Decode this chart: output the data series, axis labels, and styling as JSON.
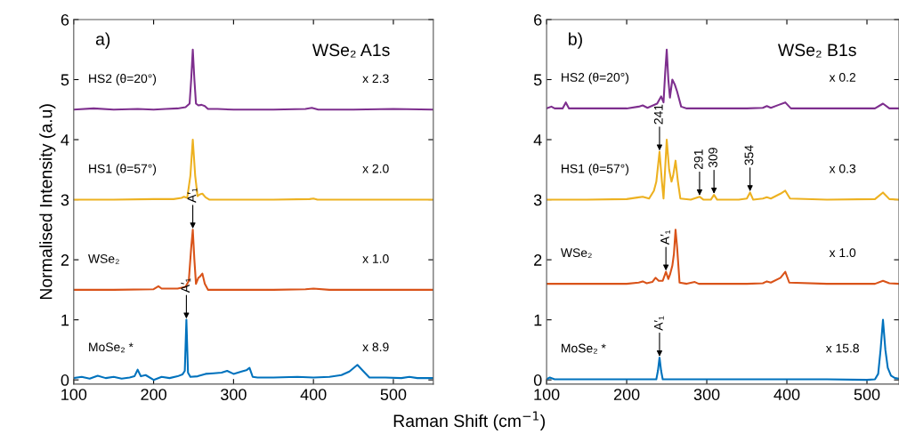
{
  "chart_data": [
    {
      "type": "line",
      "title": "WSe₂ A1s",
      "xlabel": "Raman Shift (cm$^{−1}$)",
      "ylabel": "Normalised Intensity (a.u)",
      "xlim": [
        100,
        550
      ],
      "ylim": [
        -0.07,
        6
      ],
      "xticks": [
        100,
        200,
        300,
        400,
        500
      ],
      "yticks": [
        0,
        1,
        2,
        3,
        4,
        5,
        6
      ],
      "grid": false,
      "legend": false,
      "annotations": [
        "a)",
        "x 2.3",
        "x 2.0",
        "x 1.0",
        "x 8.9",
        {
          "text": "A′₁",
          "x": 249,
          "y": 2.5
        },
        {
          "text": "A′₁",
          "x": 241,
          "y": 1.0
        }
      ],
      "series": [
        {
          "name": "HS2 (θ=20°)",
          "color": "#7e2f8e",
          "x": [
            100,
            125,
            150,
            180,
            200,
            215,
            230,
            240,
            245,
            247,
            249,
            251,
            253,
            256,
            260,
            264,
            268,
            280,
            300,
            350,
            390,
            398,
            406,
            450,
            500,
            550
          ],
          "values": [
            4.5,
            4.52,
            4.5,
            4.51,
            4.5,
            4.51,
            4.52,
            4.54,
            4.6,
            5.0,
            5.5,
            5.0,
            4.6,
            4.57,
            4.58,
            4.56,
            4.51,
            4.51,
            4.5,
            4.5,
            4.51,
            4.53,
            4.5,
            4.5,
            4.51,
            4.5
          ]
        },
        {
          "name": "HS1 (θ=57°)",
          "color": "#edb120",
          "x": [
            100,
            150,
            200,
            225,
            235,
            238,
            242,
            246,
            249,
            252,
            255,
            258,
            261,
            265,
            270,
            300,
            350,
            395,
            400,
            405,
            450,
            500,
            550
          ],
          "values": [
            3.0,
            3.0,
            3.01,
            3.01,
            3.03,
            3.05,
            3.03,
            3.4,
            4.0,
            3.4,
            3.06,
            3.09,
            3.1,
            3.04,
            3.0,
            3.0,
            3.0,
            3.01,
            3.02,
            3.0,
            3.0,
            3.0,
            3.0
          ]
        },
        {
          "name": "WSe₂",
          "color": "#d95319",
          "x": [
            100,
            150,
            200,
            206,
            210,
            230,
            240,
            244,
            247,
            249,
            251,
            253,
            256,
            258,
            261,
            264,
            268,
            300,
            350,
            390,
            400,
            420,
            450,
            500,
            550
          ],
          "values": [
            1.5,
            1.5,
            1.51,
            1.56,
            1.52,
            1.52,
            1.55,
            1.65,
            2.2,
            2.5,
            2.0,
            1.6,
            1.7,
            1.72,
            1.77,
            1.6,
            1.5,
            1.5,
            1.5,
            1.51,
            1.52,
            1.5,
            1.5,
            1.5,
            1.5
          ]
        },
        {
          "name": "MoSe₂ *",
          "color": "#0072bd",
          "x": [
            100,
            110,
            120,
            130,
            140,
            150,
            160,
            170,
            176,
            180,
            184,
            190,
            200,
            210,
            220,
            230,
            236,
            239,
            241,
            243,
            246,
            255,
            265,
            275,
            285,
            292,
            300,
            310,
            316,
            320,
            324,
            330,
            350,
            380,
            400,
            420,
            435,
            445,
            455,
            462,
            470,
            490,
            510,
            520,
            530,
            550
          ],
          "values": [
            0.03,
            0.05,
            0.02,
            0.07,
            0.03,
            0.05,
            0.02,
            0.04,
            0.06,
            0.17,
            0.06,
            0.08,
            0.0,
            0.05,
            0.03,
            0.06,
            0.09,
            0.15,
            1.0,
            0.12,
            0.05,
            0.06,
            0.1,
            0.11,
            0.12,
            0.15,
            0.1,
            0.14,
            0.16,
            0.2,
            0.05,
            0.04,
            0.04,
            0.05,
            0.04,
            0.05,
            0.08,
            0.14,
            0.25,
            0.15,
            0.04,
            0.04,
            0.03,
            0.05,
            0.03,
            0.03
          ]
        }
      ]
    },
    {
      "type": "line",
      "title": "WSe₂ B1s",
      "xlim": [
        100,
        540
      ],
      "ylim": [
        -0.07,
        6
      ],
      "xticks": [
        100,
        200,
        300,
        400,
        500
      ],
      "yticks": [
        0,
        1,
        2,
        3,
        4,
        5,
        6
      ],
      "grid": false,
      "legend": false,
      "annotations": [
        "b)",
        "x 0.2",
        "x 0.3",
        "x 1.0",
        "x 15.8",
        {
          "text": "241",
          "x": 241,
          "y": 3.8
        },
        {
          "text": "291",
          "x": 291,
          "y": 3.05
        },
        {
          "text": "309",
          "x": 309,
          "y": 3.08
        },
        {
          "text": "354",
          "x": 354,
          "y": 3.12
        },
        {
          "text": "A′₁",
          "x": 249,
          "y": 1.8
        },
        {
          "text": "A′₁",
          "x": 241,
          "y": 0.37
        }
      ],
      "series": [
        {
          "name": "HS2 (θ=20°)",
          "color": "#7e2f8e",
          "x": [
            100,
            106,
            110,
            120,
            124,
            128,
            150,
            200,
            215,
            220,
            226,
            238,
            243,
            246,
            248,
            250,
            252,
            254,
            257,
            260,
            263,
            268,
            275,
            300,
            350,
            370,
            375,
            380,
            390,
            398,
            405,
            450,
            510,
            520,
            528,
            540
          ],
          "values": [
            4.52,
            4.55,
            4.52,
            4.52,
            4.62,
            4.52,
            4.52,
            4.52,
            4.55,
            4.57,
            4.53,
            4.6,
            4.72,
            4.62,
            5.1,
            5.5,
            5.0,
            4.7,
            5.0,
            4.92,
            4.8,
            4.55,
            4.52,
            4.52,
            4.52,
            4.53,
            4.56,
            4.53,
            4.58,
            4.62,
            4.52,
            4.52,
            4.52,
            4.6,
            4.52,
            4.52
          ]
        },
        {
          "name": "HS1 (θ=57°)",
          "color": "#edb120",
          "x": [
            100,
            150,
            200,
            215,
            220,
            228,
            234,
            237,
            241,
            244,
            246,
            250,
            253,
            256,
            258,
            261,
            264,
            267,
            280,
            291,
            296,
            305,
            309,
            313,
            340,
            350,
            354,
            358,
            370,
            375,
            380,
            392,
            398,
            404,
            450,
            510,
            520,
            528,
            540
          ],
          "values": [
            3.0,
            3.0,
            3.01,
            3.04,
            3.05,
            3.02,
            3.15,
            3.3,
            3.8,
            3.3,
            3.02,
            4.0,
            3.5,
            3.3,
            3.4,
            3.65,
            3.3,
            3.02,
            3.0,
            3.05,
            3.0,
            3.0,
            3.08,
            3.0,
            3.0,
            3.02,
            3.12,
            3.0,
            3.02,
            3.04,
            3.02,
            3.1,
            3.15,
            3.02,
            3.0,
            3.01,
            3.12,
            3.01,
            3.0
          ]
        },
        {
          "name": "WSe₂",
          "color": "#d95319",
          "x": [
            100,
            150,
            200,
            215,
            220,
            225,
            232,
            236,
            240,
            245,
            249,
            252,
            254,
            257,
            259,
            261,
            263,
            266,
            275,
            285,
            290,
            350,
            370,
            375,
            380,
            392,
            398,
            403,
            450,
            510,
            520,
            528,
            540
          ],
          "values": [
            1.6,
            1.6,
            1.6,
            1.62,
            1.64,
            1.61,
            1.63,
            1.7,
            1.65,
            1.65,
            1.8,
            1.68,
            1.75,
            1.9,
            2.1,
            2.5,
            2.2,
            1.62,
            1.6,
            1.63,
            1.6,
            1.6,
            1.61,
            1.64,
            1.62,
            1.7,
            1.8,
            1.62,
            1.6,
            1.6,
            1.65,
            1.61,
            1.6
          ]
        },
        {
          "name": "MoSe₂ *",
          "color": "#0072bd",
          "x": [
            100,
            104,
            110,
            150,
            200,
            230,
            237,
            239,
            241,
            243,
            245,
            280,
            350,
            400,
            450,
            500,
            510,
            514,
            517,
            520,
            523,
            526,
            530,
            535,
            540
          ],
          "values": [
            0.01,
            0.04,
            0.01,
            0.01,
            0.01,
            0.01,
            0.01,
            0.15,
            0.37,
            0.15,
            0.01,
            0.01,
            0.01,
            0.01,
            0.01,
            0.0,
            0.01,
            0.1,
            0.5,
            1.0,
            0.5,
            0.2,
            0.07,
            0.03,
            0.02
          ]
        }
      ]
    }
  ]
}
